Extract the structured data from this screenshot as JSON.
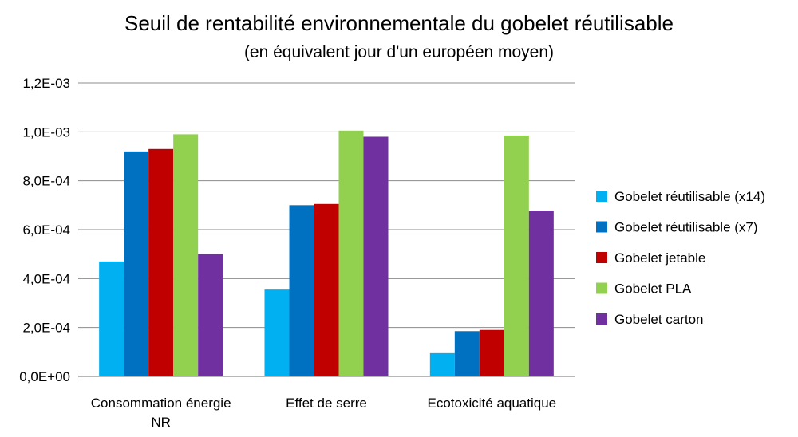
{
  "chart_data": {
    "type": "bar",
    "title": "Seuil de rentabilité environnementale du gobelet réutilisable",
    "subtitle": "(en équivalent jour d'un européen moyen)",
    "xlabel": "",
    "ylabel": "",
    "categories": [
      "Consommation énergie NR",
      "Effet de serre",
      "Ecotoxicité aquatique"
    ],
    "category_lines": [
      [
        "Consommation énergie",
        "NR"
      ],
      [
        "Effet de serre"
      ],
      [
        "Ecotoxicité aquatique"
      ]
    ],
    "ylim": [
      0,
      0.0012
    ],
    "yticks": [
      0,
      0.0002,
      0.0004,
      0.0006,
      0.0008,
      0.001,
      0.0012
    ],
    "ytick_labels": [
      "0,0E+00",
      "2,0E-04",
      "4,0E-04",
      "6,0E-04",
      "8,0E-04",
      "1,0E-03",
      "1,2E-03"
    ],
    "grid": true,
    "legend_position": "right",
    "series": [
      {
        "name": "Gobelet réutilisable (x14)",
        "color": "#00b0f0",
        "values": [
          0.00047,
          0.000355,
          9.5e-05
        ]
      },
      {
        "name": "Gobelet réutilisable (x7)",
        "color": "#0070c0",
        "values": [
          0.00092,
          0.0007,
          0.000185
        ]
      },
      {
        "name": "Gobelet jetable",
        "color": "#c00000",
        "values": [
          0.00093,
          0.000705,
          0.00019
        ]
      },
      {
        "name": "Gobelet PLA",
        "color": "#92d050",
        "values": [
          0.00099,
          0.001005,
          0.000985
        ]
      },
      {
        "name": "Gobelet carton",
        "color": "#7030a0",
        "values": [
          0.0005,
          0.00098,
          0.000678
        ]
      }
    ]
  }
}
